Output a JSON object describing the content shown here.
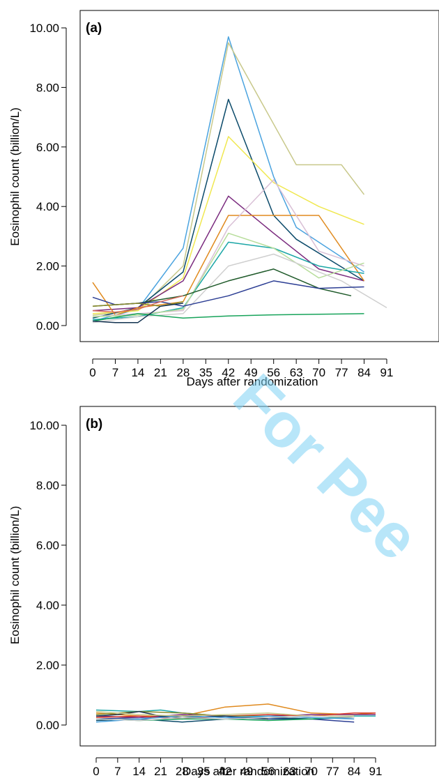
{
  "watermark_text": "For Pee",
  "chart_data": [
    {
      "type": "line",
      "panel_label": "(a)",
      "xlabel": "Days after randomization",
      "ylabel": "Eosinophil count (billion/L)",
      "x_ticks": [
        0,
        7,
        14,
        21,
        28,
        35,
        42,
        49,
        56,
        63,
        70,
        77,
        84,
        91
      ],
      "y_ticks": [
        0,
        2,
        4,
        6,
        8,
        10
      ],
      "y_tick_labels": [
        "0.00",
        "2.00",
        "4.00",
        "6.00",
        "8.00",
        "10.00"
      ],
      "xlim": [
        -5,
        100
      ],
      "ylim": [
        -0.55,
        10.55
      ],
      "grid": false,
      "series": [
        {
          "color": "#4aa3df",
          "x": [
            0,
            14,
            28,
            42,
            56,
            63,
            84
          ],
          "y": [
            0.15,
            0.55,
            2.6,
            9.7,
            5.0,
            3.3,
            1.8
          ]
        },
        {
          "color": "#c8c88a",
          "x": [
            0,
            14,
            28,
            42,
            63,
            77,
            84
          ],
          "y": [
            0.35,
            0.5,
            2.0,
            9.5,
            5.4,
            5.4,
            4.4
          ]
        },
        {
          "color": "#0b4a6a",
          "x": [
            0,
            14,
            28,
            42,
            56,
            63,
            84
          ],
          "y": [
            0.25,
            0.6,
            1.8,
            7.6,
            3.7,
            2.9,
            1.5
          ]
        },
        {
          "color": "#f0e850",
          "x": [
            0,
            14,
            28,
            42,
            56,
            70,
            84
          ],
          "y": [
            0.4,
            0.5,
            1.6,
            6.35,
            4.8,
            4.0,
            3.4
          ]
        },
        {
          "color": "#7a2a7e",
          "x": [
            0,
            14,
            28,
            42,
            56,
            70,
            84
          ],
          "y": [
            0.5,
            0.6,
            1.5,
            4.35,
            3.1,
            1.9,
            1.5
          ]
        },
        {
          "color": "#e08a1e",
          "x": [
            0,
            7,
            14,
            28,
            42,
            56,
            70,
            84
          ],
          "y": [
            1.45,
            0.35,
            0.6,
            0.8,
            3.7,
            3.7,
            3.7,
            1.5
          ]
        },
        {
          "color": "#d9c0d6",
          "x": [
            0,
            14,
            28,
            42,
            56,
            70,
            84
          ],
          "y": [
            0.3,
            0.4,
            0.5,
            3.3,
            4.9,
            2.5,
            2.0
          ]
        },
        {
          "color": "#1aa6a6",
          "x": [
            0,
            14,
            28,
            42,
            56,
            70,
            84
          ],
          "y": [
            0.2,
            0.3,
            0.6,
            2.8,
            2.6,
            2.0,
            1.75
          ]
        },
        {
          "color": "#b7dd9b",
          "x": [
            0,
            14,
            28,
            42,
            56,
            70,
            84
          ],
          "y": [
            0.3,
            0.35,
            0.55,
            3.1,
            2.6,
            1.6,
            2.1
          ]
        },
        {
          "color": "#cfcfcf",
          "x": [
            0,
            14,
            28,
            42,
            56,
            77,
            91
          ],
          "y": [
            0.1,
            0.3,
            0.4,
            2.0,
            2.4,
            1.5,
            0.6
          ]
        },
        {
          "color": "#1f5a2a",
          "x": [
            0,
            14,
            28,
            42,
            56,
            70,
            80
          ],
          "y": [
            0.65,
            0.75,
            1.0,
            1.5,
            1.9,
            1.25,
            1.0
          ]
        },
        {
          "color": "#2c3e94",
          "x": [
            0,
            7,
            14,
            21,
            28,
            42,
            56,
            70,
            84
          ],
          "y": [
            0.95,
            0.7,
            0.75,
            0.8,
            0.65,
            1.0,
            1.5,
            1.25,
            1.3
          ]
        },
        {
          "color": "#17a35a",
          "x": [
            0,
            14,
            28,
            42,
            56,
            70,
            84
          ],
          "y": [
            0.15,
            0.4,
            0.25,
            0.32,
            0.36,
            0.38,
            0.4
          ]
        },
        {
          "color": "#8a8a2a",
          "x": [
            0,
            7,
            14,
            21,
            28
          ],
          "y": [
            0.65,
            0.7,
            0.75,
            0.65,
            0.8
          ]
        },
        {
          "color": "#11314f",
          "x": [
            0,
            7,
            14,
            21,
            28
          ],
          "y": [
            0.15,
            0.1,
            0.1,
            0.65,
            0.75
          ]
        },
        {
          "color": "#d96a5a",
          "x": [
            0,
            7,
            14,
            21,
            28
          ],
          "y": [
            0.5,
            0.45,
            0.55,
            0.8,
            1.0
          ]
        }
      ]
    },
    {
      "type": "line",
      "panel_label": "(b)",
      "xlabel": "Days after randomization",
      "ylabel": "Eosinophil count (billion/L)",
      "x_ticks": [
        0,
        7,
        14,
        21,
        28,
        35,
        42,
        49,
        56,
        63,
        70,
        77,
        84,
        91
      ],
      "y_ticks": [
        0,
        2,
        4,
        6,
        8,
        10
      ],
      "y_tick_labels": [
        "0.00",
        "2.00",
        "4.00",
        "6.00",
        "8.00",
        "10.00"
      ],
      "xlim": [
        -5,
        100
      ],
      "ylim": [
        -0.55,
        10.55
      ],
      "grid": false,
      "series": [
        {
          "color": "#e08a1e",
          "x": [
            0,
            14,
            28,
            42,
            56,
            70,
            84,
            91
          ],
          "y": [
            0.4,
            0.3,
            0.3,
            0.6,
            0.7,
            0.4,
            0.35,
            0.4
          ]
        },
        {
          "color": "#1aa6a6",
          "x": [
            0,
            14,
            21,
            28,
            42,
            56,
            70,
            84,
            91
          ],
          "y": [
            0.5,
            0.45,
            0.5,
            0.4,
            0.3,
            0.25,
            0.2,
            0.3,
            0.3
          ]
        },
        {
          "color": "#2c3e94",
          "x": [
            0,
            14,
            28,
            42,
            56,
            70,
            84
          ],
          "y": [
            0.2,
            0.25,
            0.3,
            0.25,
            0.2,
            0.2,
            0.1
          ]
        },
        {
          "color": "#0b4a6a",
          "x": [
            0,
            14,
            28,
            42,
            56,
            70,
            84
          ],
          "y": [
            0.15,
            0.2,
            0.1,
            0.2,
            0.25,
            0.2,
            0.25
          ]
        },
        {
          "color": "#7a2a7e",
          "x": [
            0,
            14,
            28,
            42,
            56,
            70,
            84,
            91
          ],
          "y": [
            0.3,
            0.25,
            0.35,
            0.3,
            0.3,
            0.35,
            0.35,
            0.35
          ]
        },
        {
          "color": "#d93a2a",
          "x": [
            0,
            14,
            28,
            42,
            56,
            70,
            84,
            91
          ],
          "y": [
            0.25,
            0.3,
            0.2,
            0.3,
            0.35,
            0.3,
            0.4,
            0.4
          ]
        },
        {
          "color": "#17a35a",
          "x": [
            0,
            14,
            28,
            42,
            56,
            70,
            84
          ],
          "y": [
            0.2,
            0.15,
            0.2,
            0.2,
            0.15,
            0.2,
            0.3
          ]
        },
        {
          "color": "#8a8a2a",
          "x": [
            0,
            14,
            28,
            42,
            56,
            70
          ],
          "y": [
            0.35,
            0.45,
            0.4,
            0.3,
            0.3,
            0.25
          ]
        },
        {
          "color": "#11314f",
          "x": [
            0,
            7,
            14,
            21,
            28,
            42,
            56
          ],
          "y": [
            0.3,
            0.35,
            0.45,
            0.3,
            0.25,
            0.3,
            0.2
          ]
        },
        {
          "color": "#4aa3df",
          "x": [
            0,
            14,
            28,
            42,
            56,
            70,
            84
          ],
          "y": [
            0.1,
            0.2,
            0.3,
            0.25,
            0.3,
            0.25,
            0.2
          ]
        },
        {
          "color": "#c8c88a",
          "x": [
            0,
            14,
            28,
            42,
            56,
            70,
            84
          ],
          "y": [
            0.45,
            0.35,
            0.3,
            0.35,
            0.4,
            0.3,
            0.3
          ]
        },
        {
          "color": "#cfcfcf",
          "x": [
            0,
            14,
            28,
            42,
            56,
            70,
            84
          ],
          "y": [
            0.2,
            0.15,
            0.25,
            0.2,
            0.25,
            0.3,
            0.25
          ]
        }
      ]
    }
  ]
}
